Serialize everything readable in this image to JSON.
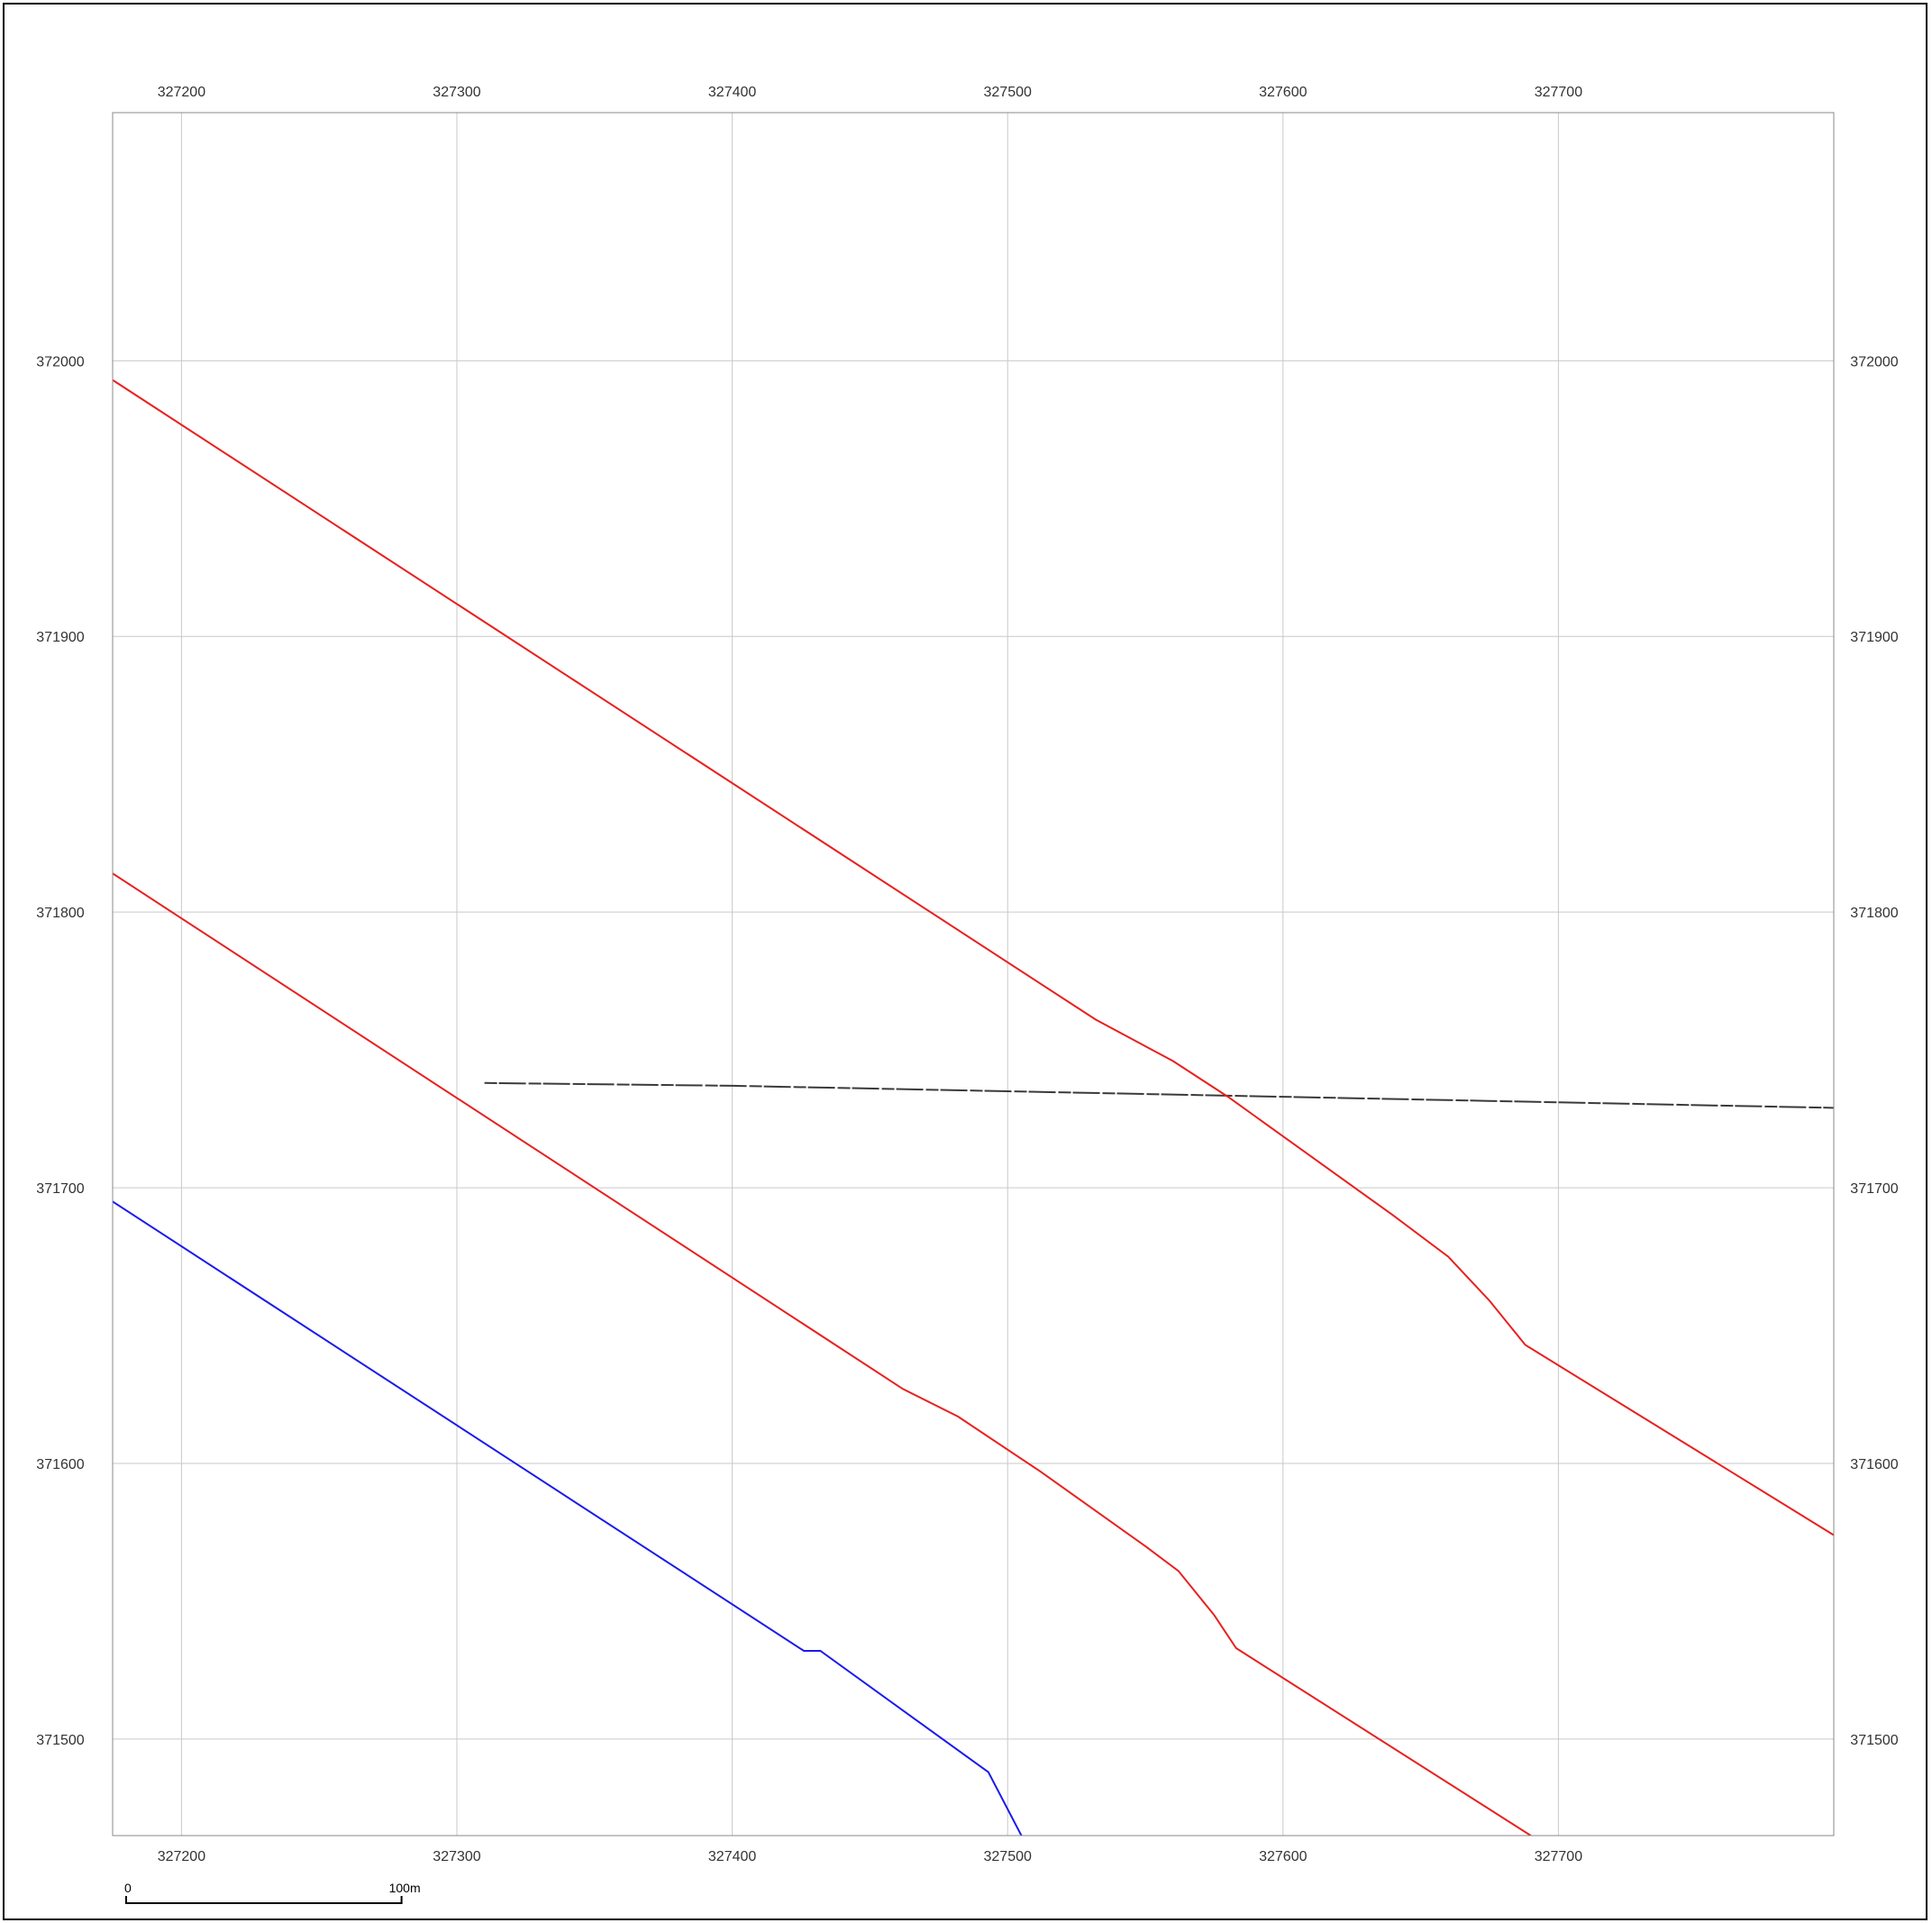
{
  "map": {
    "easting_ticks": [
      327200,
      327300,
      327400,
      327500,
      327600,
      327700
    ],
    "northing_ticks": [
      372000,
      371900,
      371800,
      371700,
      371600,
      371500
    ],
    "extent": {
      "x": [
        327175,
        327800
      ],
      "y": [
        371465,
        372090
      ]
    },
    "grid": true,
    "frame_color": "#888888"
  },
  "features": {
    "red_color": "#e8201e",
    "blue_color": "#1a1aee",
    "dark_color": "#3a3a3a",
    "red_line_upper": [
      [
        327175,
        371993
      ],
      [
        327532,
        371761
      ],
      [
        327560,
        371746
      ],
      [
        327580,
        371733
      ],
      [
        327640,
        371690
      ],
      [
        327660,
        371675
      ],
      [
        327675,
        371659
      ],
      [
        327688,
        371643
      ],
      [
        327800,
        371574
      ]
    ],
    "red_line_lower": [
      [
        327175,
        371814
      ],
      [
        327462,
        371627
      ],
      [
        327482,
        371617
      ],
      [
        327512,
        371597
      ],
      [
        327550,
        371570
      ],
      [
        327562,
        371561
      ],
      [
        327575,
        371545
      ],
      [
        327583,
        371533
      ],
      [
        327690,
        371465
      ]
    ],
    "blue_line": [
      [
        327175,
        371695
      ],
      [
        327426,
        371532
      ],
      [
        327432,
        371532
      ],
      [
        327493,
        371488
      ],
      [
        327505,
        371465
      ]
    ],
    "dark_trace": [
      [
        327310,
        371738
      ],
      [
        327400,
        371737
      ],
      [
        327500,
        371735
      ],
      [
        327600,
        371733
      ],
      [
        327700,
        371731
      ],
      [
        327800,
        371729
      ]
    ]
  },
  "scale_bar": {
    "start_label": "0",
    "end_label": "100m",
    "length_m": 100
  }
}
